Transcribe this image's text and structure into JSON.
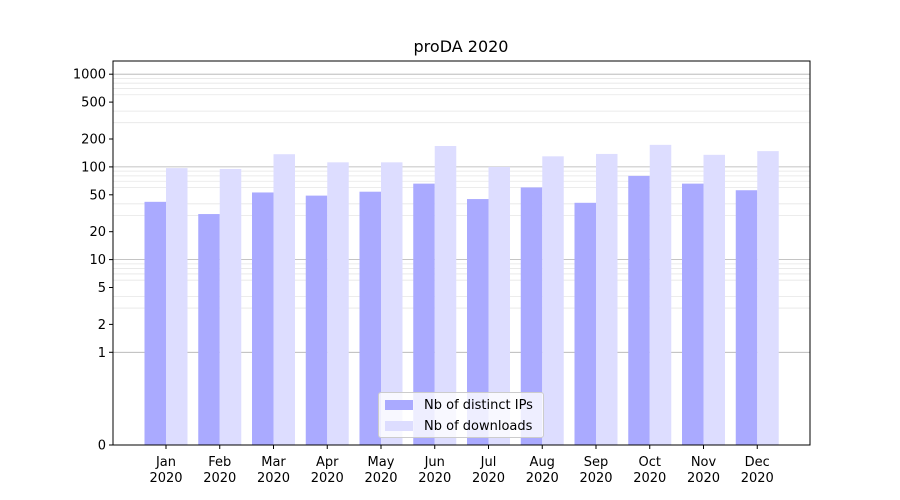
{
  "chart_data": {
    "type": "bar",
    "title": "proDA 2020",
    "xlabel": "",
    "ylabel": "",
    "y_scale": "symlog",
    "y_ticks": [
      "0",
      "1",
      "2",
      "5",
      "10",
      "20",
      "50",
      "100",
      "200",
      "500",
      "1000"
    ],
    "categories": [
      {
        "month": "Jan",
        "year": "2020"
      },
      {
        "month": "Feb",
        "year": "2020"
      },
      {
        "month": "Mar",
        "year": "2020"
      },
      {
        "month": "Apr",
        "year": "2020"
      },
      {
        "month": "May",
        "year": "2020"
      },
      {
        "month": "Jun",
        "year": "2020"
      },
      {
        "month": "Jul",
        "year": "2020"
      },
      {
        "month": "Aug",
        "year": "2020"
      },
      {
        "month": "Sep",
        "year": "2020"
      },
      {
        "month": "Oct",
        "year": "2020"
      },
      {
        "month": "Nov",
        "year": "2020"
      },
      {
        "month": "Dec",
        "year": "2020"
      }
    ],
    "series": [
      {
        "name": "Nb of distinct IPs",
        "color": "#aaaaff",
        "values": [
          42,
          31,
          53,
          49,
          54,
          66,
          45,
          60,
          41,
          80,
          66,
          56
        ]
      },
      {
        "name": "Nb of downloads",
        "color": "#ddddff",
        "values": [
          97,
          95,
          137,
          112,
          112,
          168,
          100,
          130,
          138,
          173,
          135,
          148
        ]
      }
    ],
    "grid": true,
    "legend_position": "bottom-center"
  }
}
